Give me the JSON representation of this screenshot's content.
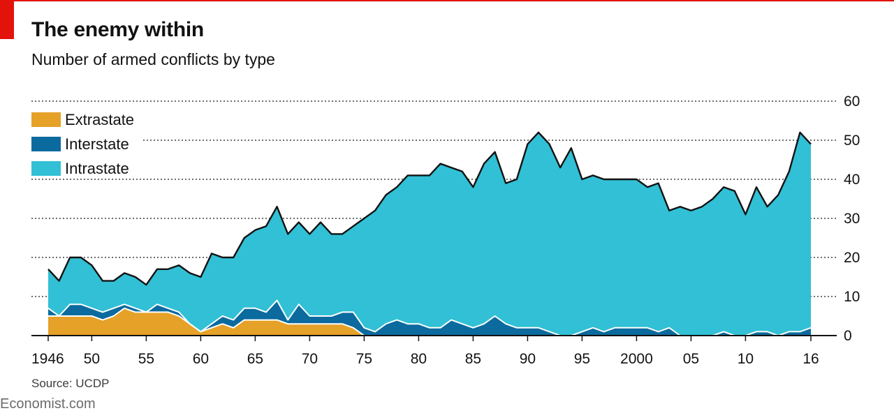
{
  "title": "The enemy within",
  "subtitle": "Number of armed conflicts by type",
  "source": "Source: UCDP",
  "brand": "Economist.com",
  "colors": {
    "extrastate": "#e5a128",
    "interstate": "#0b6a9e",
    "intrastate": "#31c0d5",
    "accent": "#e3120b"
  },
  "chart_data": {
    "type": "area",
    "stacked": true,
    "x": [
      1946,
      1947,
      1948,
      1949,
      1950,
      1951,
      1952,
      1953,
      1954,
      1955,
      1956,
      1957,
      1958,
      1959,
      1960,
      1961,
      1962,
      1963,
      1964,
      1965,
      1966,
      1967,
      1968,
      1969,
      1970,
      1971,
      1972,
      1973,
      1974,
      1975,
      1976,
      1977,
      1978,
      1979,
      1980,
      1981,
      1982,
      1983,
      1984,
      1985,
      1986,
      1987,
      1988,
      1989,
      1990,
      1991,
      1992,
      1993,
      1994,
      1995,
      1996,
      1997,
      1998,
      1999,
      2000,
      2001,
      2002,
      2003,
      2004,
      2005,
      2006,
      2007,
      2008,
      2009,
      2010,
      2011,
      2012,
      2013,
      2014,
      2015,
      2016
    ],
    "xtick_values": [
      1946,
      1950,
      1955,
      1960,
      1965,
      1970,
      1975,
      1980,
      1985,
      1990,
      1995,
      2000,
      2005,
      2010,
      2016
    ],
    "xtick_labels": [
      "1946",
      "50",
      "55",
      "60",
      "65",
      "70",
      "75",
      "80",
      "85",
      "90",
      "95",
      "2000",
      "05",
      "10",
      "16"
    ],
    "ylim": [
      0,
      60
    ],
    "yticks": [
      0,
      10,
      20,
      30,
      40,
      50,
      60
    ],
    "axis_side": "right",
    "grid": "dotted horizontal",
    "legend_position": "top-left",
    "series": [
      {
        "name": "Extrastate",
        "color": "#e5a128",
        "values": [
          5,
          5,
          5,
          5,
          5,
          4,
          5,
          7,
          6,
          6,
          6,
          6,
          5,
          3,
          1,
          2,
          3,
          2,
          4,
          4,
          4,
          4,
          3,
          3,
          3,
          3,
          3,
          3,
          2,
          0,
          0,
          0,
          0,
          0,
          0,
          0,
          0,
          0,
          0,
          0,
          0,
          0,
          0,
          0,
          0,
          0,
          0,
          0,
          0,
          0,
          0,
          0,
          0,
          0,
          0,
          0,
          0,
          0,
          0,
          0,
          0,
          0,
          0,
          0,
          0,
          0,
          0,
          0,
          0,
          0,
          0
        ]
      },
      {
        "name": "Interstate",
        "color": "#0b6a9e",
        "values": [
          2,
          0,
          3,
          3,
          2,
          2,
          2,
          1,
          1,
          0,
          2,
          1,
          1,
          0,
          0,
          1,
          2,
          2,
          3,
          3,
          2,
          5,
          1,
          5,
          2,
          2,
          2,
          3,
          4,
          2,
          1,
          3,
          4,
          3,
          3,
          2,
          2,
          4,
          3,
          2,
          3,
          5,
          3,
          2,
          2,
          2,
          1,
          0,
          0,
          1,
          2,
          1,
          2,
          2,
          2,
          2,
          1,
          2,
          0,
          0,
          0,
          0,
          1,
          0,
          0,
          1,
          1,
          0,
          1,
          1,
          2
        ]
      },
      {
        "name": "Intrastate",
        "color": "#31c0d5",
        "values": [
          10,
          9,
          12,
          12,
          11,
          8,
          7,
          8,
          8,
          7,
          9,
          10,
          12,
          13,
          14,
          18,
          15,
          16,
          18,
          20,
          22,
          24,
          22,
          21,
          21,
          24,
          21,
          20,
          22,
          28,
          31,
          33,
          34,
          38,
          38,
          39,
          42,
          39,
          39,
          36,
          41,
          42,
          36,
          38,
          47,
          50,
          48,
          43,
          48,
          39,
          39,
          39,
          38,
          38,
          38,
          36,
          38,
          30,
          33,
          32,
          33,
          35,
          37,
          37,
          31,
          37,
          32,
          36,
          41,
          51,
          47
        ]
      }
    ],
    "totals": [
      17,
      14,
      20,
      20,
      18,
      14,
      14,
      16,
      15,
      13,
      17,
      17,
      18,
      16,
      15,
      21,
      20,
      20,
      25,
      27,
      28,
      33,
      26,
      29,
      26,
      29,
      26,
      26,
      28,
      30,
      32,
      36,
      38,
      41,
      41,
      41,
      44,
      43,
      42,
      38,
      44,
      47,
      39,
      40,
      49,
      52,
      49,
      43,
      48,
      40,
      41,
      40,
      40,
      40,
      40,
      38,
      39,
      32,
      33,
      32,
      33,
      35,
      38,
      37,
      31,
      38,
      33,
      36,
      42,
      52,
      49
    ]
  }
}
